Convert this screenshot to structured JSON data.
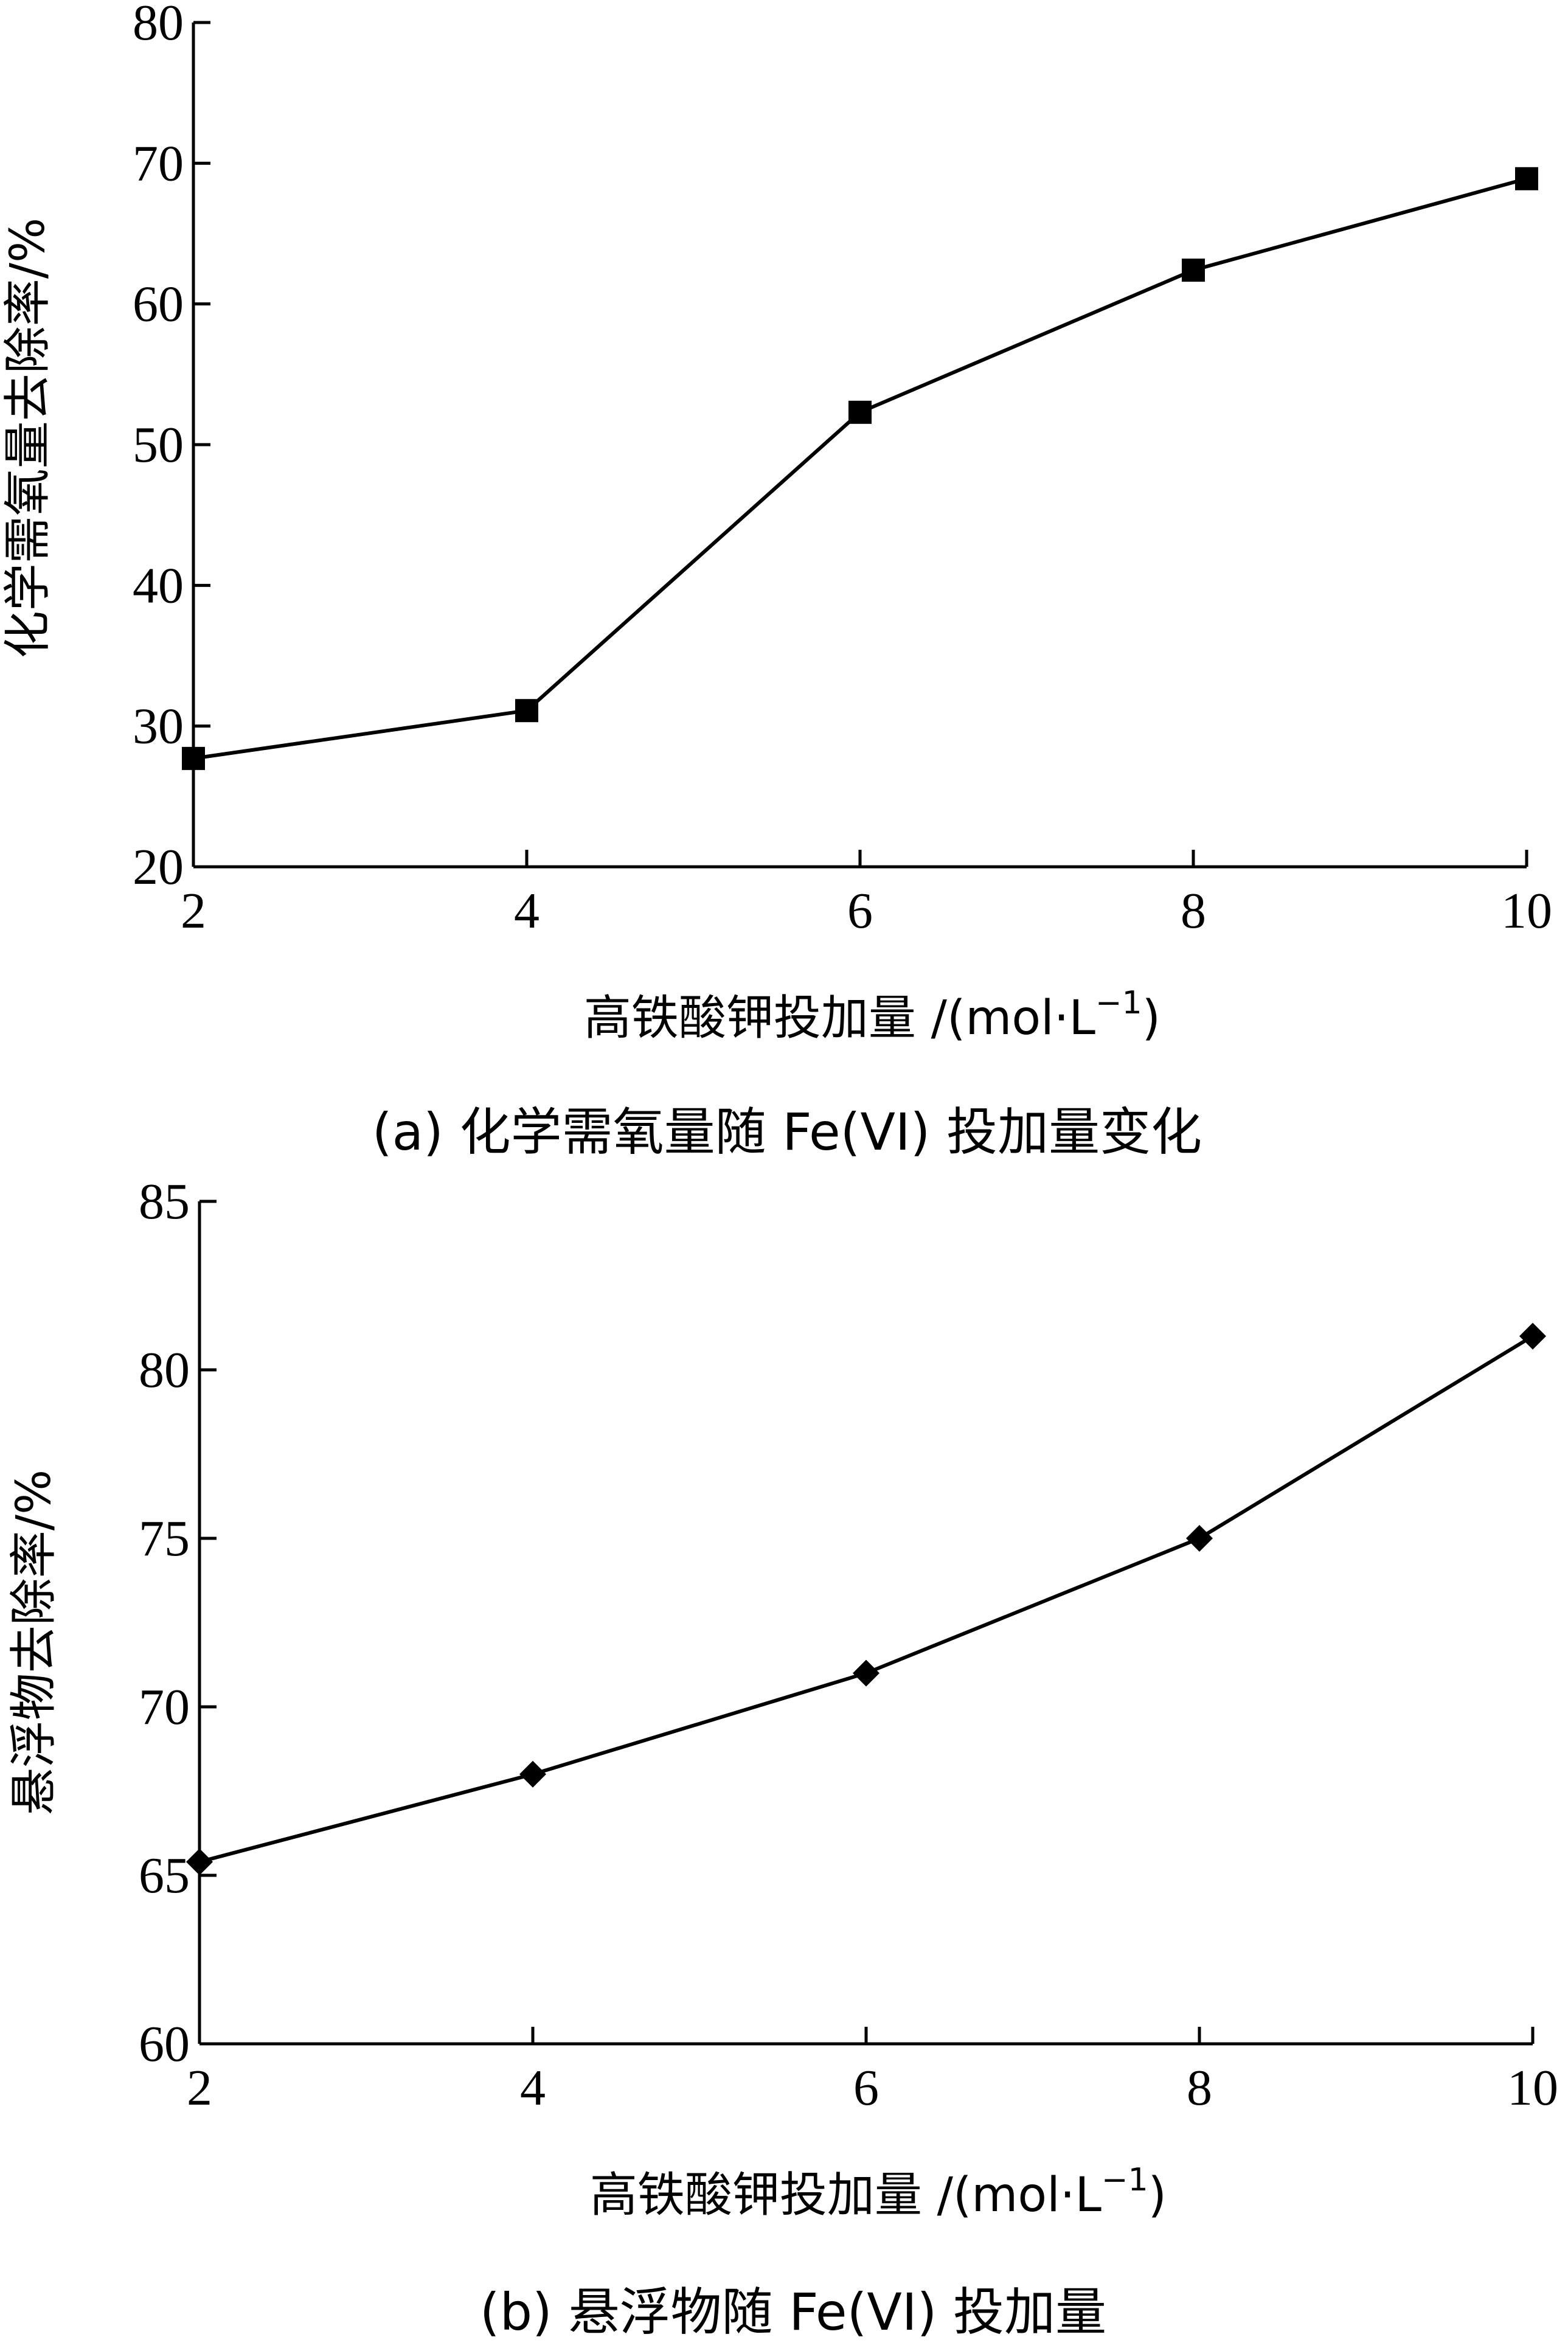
{
  "chart_data": [
    {
      "type": "line",
      "caption": "(a) 化学需氧量随 Fe(VI) 投加量变化",
      "xlabel": "高铁酸钾投加量 /(mol·L",
      "xlabel_sup": "−1",
      "xlabel_close": ")",
      "ylabel": "化学需氧量去除率/%",
      "xlim": [
        2,
        10
      ],
      "ylim": [
        20,
        80
      ],
      "xticks": [
        2,
        4,
        6,
        8,
        10
      ],
      "yticks": [
        20,
        30,
        40,
        50,
        60,
        70,
        80
      ],
      "marker": "square",
      "grid": false,
      "series": [
        {
          "x": [
            2,
            4,
            6,
            8,
            10
          ],
          "values": [
            27.7,
            31.1,
            52.3,
            62.4,
            68.9
          ]
        }
      ]
    },
    {
      "type": "line",
      "caption": "(b) 悬浮物随 Fe(VI) 投加量",
      "xlabel": "高铁酸钾投加量 /(mol·L",
      "xlabel_sup": "−1",
      "xlabel_close": ")",
      "ylabel": "悬浮物去除率/%",
      "xlim": [
        2,
        10
      ],
      "ylim": [
        60,
        85
      ],
      "xticks": [
        2,
        4,
        6,
        8,
        10
      ],
      "yticks": [
        60,
        65,
        70,
        75,
        80,
        85
      ],
      "marker": "diamond",
      "grid": false,
      "series": [
        {
          "x": [
            2,
            4,
            6,
            8,
            10
          ],
          "values": [
            65.4,
            68.0,
            71.0,
            75.0,
            81.0
          ]
        }
      ]
    }
  ]
}
